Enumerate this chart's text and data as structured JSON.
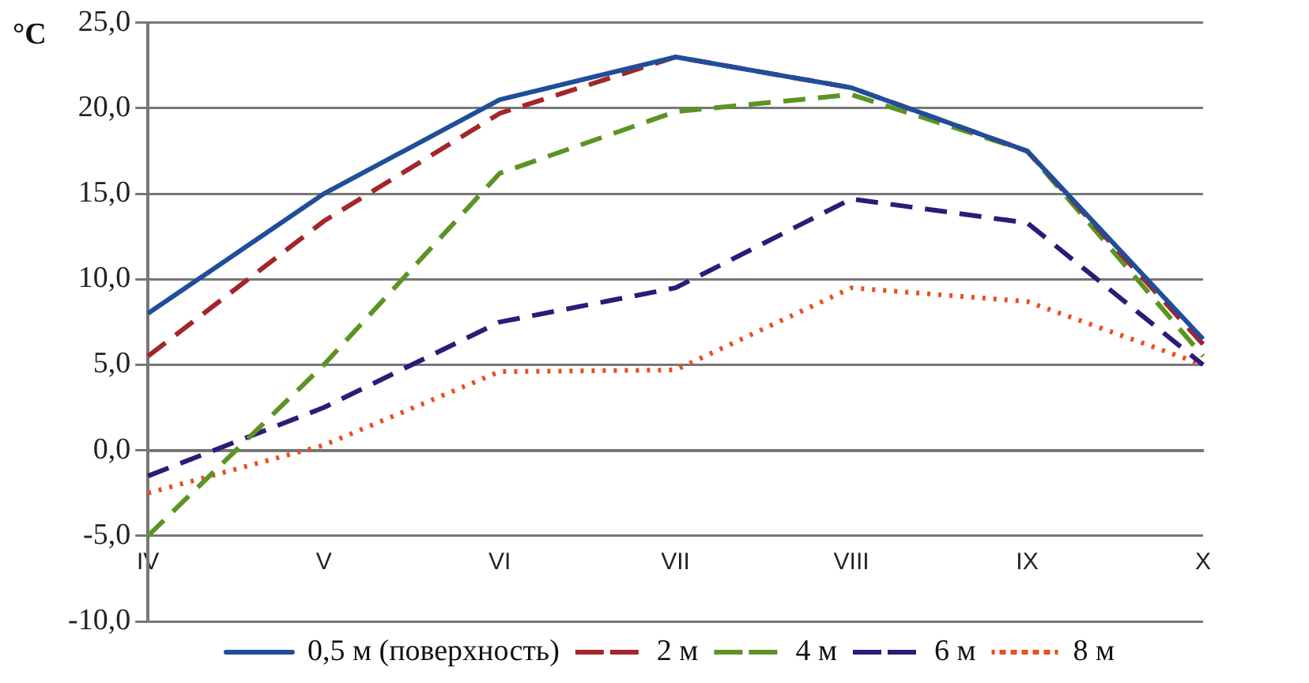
{
  "chart_data": {
    "type": "line",
    "ylabel": "°C",
    "categories": [
      "IV",
      "V",
      "VI",
      "VII",
      "VIII",
      "IX",
      "X"
    ],
    "series": [
      {
        "name": "0,5 м (поверхность)",
        "color": "#1f4e9a",
        "line_style": "solid",
        "values": [
          8.0,
          15.0,
          20.5,
          23.0,
          21.2,
          17.5,
          6.5
        ]
      },
      {
        "name": "2 м",
        "color": "#a3262a",
        "line_style": "dashed",
        "values": [
          5.5,
          13.4,
          19.7,
          23.0,
          21.2,
          17.5,
          6.2
        ]
      },
      {
        "name": "4 м",
        "color": "#5b9424",
        "line_style": "dashed",
        "values": [
          -5.0,
          5.0,
          16.2,
          19.8,
          20.8,
          17.5,
          5.5
        ]
      },
      {
        "name": "6 м",
        "color": "#2e1a78",
        "line_style": "dashed",
        "values": [
          -1.5,
          2.5,
          7.5,
          9.5,
          14.7,
          13.3,
          5.0
        ]
      },
      {
        "name": "8 м",
        "color": "#e8501e",
        "line_style": "dotted",
        "values": [
          -2.5,
          0.3,
          4.6,
          4.7,
          9.5,
          8.7,
          5.0
        ]
      }
    ],
    "ylim": [
      -10,
      25
    ],
    "yticks": [
      {
        "value": -10,
        "label": "-10,0"
      },
      {
        "value": -5,
        "label": "-5,0"
      },
      {
        "value": 0,
        "label": "0,0"
      },
      {
        "value": 5,
        "label": "5,0"
      },
      {
        "value": 10,
        "label": "10,0"
      },
      {
        "value": 15,
        "label": "15,0"
      },
      {
        "value": 20,
        "label": "20,0"
      },
      {
        "value": 25,
        "label": "25,0"
      }
    ],
    "grid": "y",
    "legend": "bottom",
    "marker": "none"
  }
}
